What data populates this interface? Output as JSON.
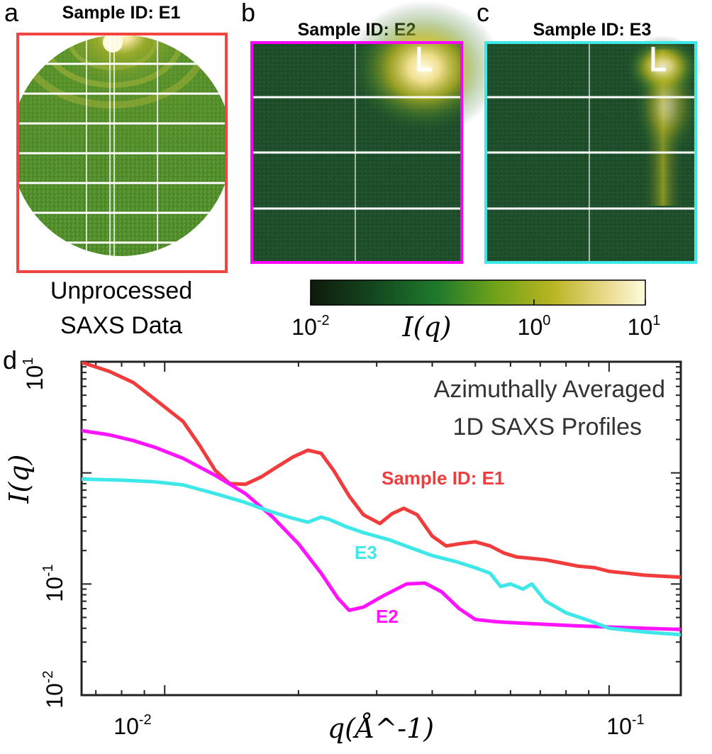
{
  "panels": {
    "a": {
      "letter": "a",
      "title": "Sample ID: E1",
      "border": "#f24440",
      "caption_line1": "Unprocessed",
      "caption_line2": "SAXS Data"
    },
    "b": {
      "letter": "b",
      "title": "Sample ID: E2",
      "border": "#ff00ff"
    },
    "c": {
      "letter": "c",
      "title": "Sample ID: E3",
      "border": "#3ee8e8"
    }
  },
  "colorbar": {
    "tick_low_base": "10",
    "tick_low_exp": "-2",
    "tick_mid_base": "10",
    "tick_mid_exp": "0",
    "tick_high_base": "10",
    "tick_high_exp": "1",
    "label": "I(q)",
    "colors": [
      "#0e1a0c",
      "#144a20",
      "#1f7a2c",
      "#6fa21a",
      "#b8b422",
      "#e8d98a",
      "#fffbe0"
    ]
  },
  "chart_data": {
    "type": "line",
    "panel_letter": "d",
    "xscale": "log",
    "yscale": "log",
    "xlim": [
      0.0065,
      0.145
    ],
    "ylim": [
      0.01,
      10
    ],
    "xlabel": "q(Å^-1)",
    "ylabel": "I(q)",
    "xticks": [
      {
        "base": "10",
        "exp": "-2"
      },
      {
        "base": "10",
        "exp": "-1"
      }
    ],
    "yticks": [
      {
        "base": "10",
        "exp": "-2"
      },
      {
        "base": "10",
        "exp": "-1"
      },
      {
        "base": "10",
        "exp": "1"
      }
    ],
    "annotation_line1": "Azimuthally Averaged",
    "annotation_line2": "1D SAXS Profiles",
    "series": [
      {
        "name": "Sample ID: E1",
        "color": "#f03c3c",
        "x": [
          0.0065,
          0.0075,
          0.0085,
          0.0095,
          0.011,
          0.012,
          0.013,
          0.014,
          0.0152,
          0.0165,
          0.018,
          0.0195,
          0.021,
          0.0225,
          0.024,
          0.026,
          0.028,
          0.0305,
          0.0325,
          0.0345,
          0.037,
          0.04,
          0.043,
          0.046,
          0.05,
          0.054,
          0.058,
          0.062,
          0.067,
          0.072,
          0.078,
          0.085,
          0.093,
          0.1,
          0.11,
          0.12,
          0.13,
          0.145
        ],
        "y": [
          9.9,
          8.2,
          6.5,
          4.6,
          2.9,
          1.75,
          1.05,
          0.8,
          0.79,
          0.92,
          1.15,
          1.4,
          1.6,
          1.5,
          1.05,
          0.62,
          0.42,
          0.35,
          0.43,
          0.48,
          0.42,
          0.27,
          0.22,
          0.23,
          0.24,
          0.22,
          0.19,
          0.175,
          0.17,
          0.165,
          0.155,
          0.145,
          0.14,
          0.13,
          0.125,
          0.12,
          0.118,
          0.115
        ]
      },
      {
        "name": "E2",
        "color": "#ff14ff",
        "x": [
          0.0065,
          0.0075,
          0.0085,
          0.0095,
          0.011,
          0.013,
          0.0152,
          0.0175,
          0.02,
          0.0225,
          0.0245,
          0.026,
          0.028,
          0.031,
          0.035,
          0.0385,
          0.042,
          0.046,
          0.05,
          0.055,
          0.06,
          0.067,
          0.075,
          0.085,
          0.1,
          0.12,
          0.145
        ],
        "y": [
          2.4,
          2.2,
          1.95,
          1.7,
          1.35,
          0.95,
          0.65,
          0.4,
          0.23,
          0.125,
          0.075,
          0.058,
          0.062,
          0.078,
          0.1,
          0.102,
          0.085,
          0.06,
          0.048,
          0.046,
          0.045,
          0.044,
          0.043,
          0.042,
          0.041,
          0.04,
          0.039
        ]
      },
      {
        "name": "E3",
        "color": "#3ee8e8",
        "x": [
          0.0065,
          0.008,
          0.0095,
          0.011,
          0.013,
          0.015,
          0.017,
          0.019,
          0.021,
          0.0225,
          0.0235,
          0.0255,
          0.028,
          0.032,
          0.036,
          0.04,
          0.045,
          0.05,
          0.054,
          0.057,
          0.06,
          0.064,
          0.067,
          0.072,
          0.08,
          0.09,
          0.1,
          0.12,
          0.145
        ],
        "y": [
          0.88,
          0.86,
          0.83,
          0.78,
          0.65,
          0.55,
          0.46,
          0.4,
          0.36,
          0.4,
          0.38,
          0.33,
          0.29,
          0.25,
          0.21,
          0.18,
          0.16,
          0.14,
          0.125,
          0.095,
          0.1,
          0.09,
          0.1,
          0.07,
          0.055,
          0.047,
          0.04,
          0.037,
          0.035
        ]
      }
    ],
    "series_label_e1": "Sample ID: E1",
    "series_label_e2": "E2",
    "series_label_e3": "E3"
  }
}
